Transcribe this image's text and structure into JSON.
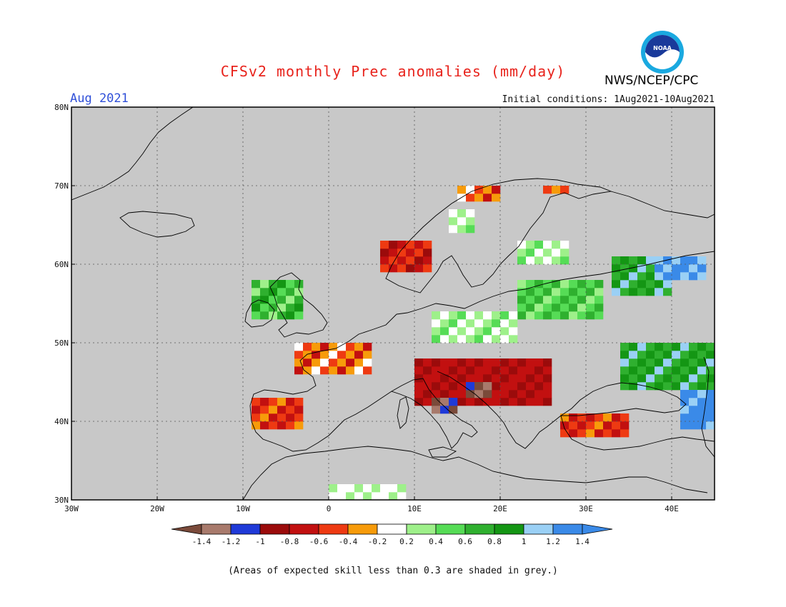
{
  "title": "CFSv2 monthly Prec anomalies (mm/day)",
  "month": "Aug 2021",
  "org": "NWS/NCEP/CPC",
  "logo_text": "NOAA",
  "initial_conditions": "Initial conditions: 1Aug2021-10Aug2021",
  "note": "(Areas of expected skill less than 0.3 are shaded in grey.)",
  "colors": {
    "background": "#c8c8c8",
    "land_outline": "#000000",
    "grid": "#555555"
  },
  "map": {
    "lon_range": [
      -30,
      45
    ],
    "lat_range": [
      30,
      80
    ],
    "lon_ticks": [
      "30W",
      "20W",
      "10W",
      "0",
      "10E",
      "20E",
      "30E",
      "40E"
    ],
    "lat_ticks": [
      "80N",
      "70N",
      "60N",
      "50N",
      "40N",
      "30N"
    ]
  },
  "colorbar": {
    "labels": [
      "-1.4",
      "-1.2",
      "-1",
      "-0.8",
      "-0.6",
      "-0.4",
      "-0.2",
      "0.2",
      "0.4",
      "0.6",
      "0.8",
      "1",
      "1.2",
      "1.4"
    ],
    "colors": [
      "#7a4a3a",
      "#a87a6c",
      "#1f3ad8",
      "#9b0b0b",
      "#c21010",
      "#ee3a12",
      "#f79b0a",
      "#ffffff",
      "#9ef08a",
      "#56dc56",
      "#2fb02f",
      "#149614",
      "#9ad0f5",
      "#3a8ae8",
      "#3a8ae8"
    ]
  },
  "anomaly_regions": [
    {
      "region": "northern-norway-coast",
      "value": -0.4,
      "lon": [
        15,
        20
      ],
      "lat": [
        68,
        70
      ]
    },
    {
      "region": "northern-finland",
      "value": -0.5,
      "lon": [
        25,
        28
      ],
      "lat": [
        69,
        70
      ]
    },
    {
      "region": "central-sweden",
      "value": 0.2,
      "lon": [
        14,
        17
      ],
      "lat": [
        64,
        67
      ]
    },
    {
      "region": "western-norway",
      "value": -0.7,
      "lon": [
        6,
        12
      ],
      "lat": [
        59,
        63
      ]
    },
    {
      "region": "southern-finland",
      "value": 0.2,
      "lon": [
        22,
        28
      ],
      "lat": [
        60,
        63
      ]
    },
    {
      "region": "baltic-belarus",
      "value": 0.5,
      "lon": [
        22,
        32
      ],
      "lat": [
        53,
        58
      ]
    },
    {
      "region": "western-russia",
      "value": 0.8,
      "lon": [
        33,
        40
      ],
      "lat": [
        56,
        61
      ]
    },
    {
      "region": "russia-east-blue",
      "value": 1.2,
      "lon": [
        38,
        44
      ],
      "lat": [
        58,
        61
      ]
    },
    {
      "region": "ireland-scotland",
      "value": 0.6,
      "lon": [
        -9,
        -3
      ],
      "lat": [
        53,
        58
      ]
    },
    {
      "region": "france",
      "value": -0.4,
      "lon": [
        -4,
        5
      ],
      "lat": [
        46,
        50
      ]
    },
    {
      "region": "germany-poland",
      "value": 0.2,
      "lon": [
        12,
        22
      ],
      "lat": [
        50,
        54
      ]
    },
    {
      "region": "alps-hungary-balkans",
      "value": -0.8,
      "lon": [
        10,
        26
      ],
      "lat": [
        42,
        48
      ]
    },
    {
      "region": "central-italy",
      "value": -1.4,
      "lon": [
        12,
        15
      ],
      "lat": [
        41,
        43
      ]
    },
    {
      "region": "adriatic-brown",
      "value": -1.4,
      "lon": [
        16,
        19
      ],
      "lat": [
        43,
        45
      ]
    },
    {
      "region": "iberia",
      "value": -0.6,
      "lon": [
        -9,
        -3
      ],
      "lat": [
        39,
        43
      ]
    },
    {
      "region": "turkey-west",
      "value": -0.6,
      "lon": [
        27,
        35
      ],
      "lat": [
        38,
        41
      ]
    },
    {
      "region": "ukraine-caucasus",
      "value": 0.8,
      "lon": [
        34,
        45
      ],
      "lat": [
        44,
        50
      ]
    },
    {
      "region": "caucasus-blue",
      "value": 1.3,
      "lon": [
        41,
        45
      ],
      "lat": [
        39,
        44
      ]
    },
    {
      "region": "north-africa-white",
      "value": 0.1,
      "lon": [
        0,
        9
      ],
      "lat": [
        30,
        32
      ]
    }
  ]
}
